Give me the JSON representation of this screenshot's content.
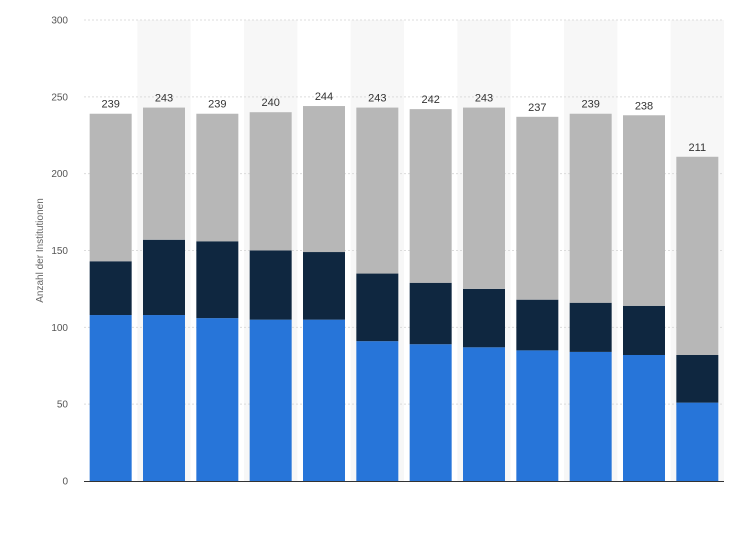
{
  "chart_data": {
    "type": "bar",
    "stacked": true,
    "ylabel": "Anzahl der Institutionen",
    "ylim": [
      0,
      300
    ],
    "yticks": [
      0,
      50,
      100,
      150,
      200,
      250,
      300
    ],
    "grid": true,
    "categories": [
      "",
      "",
      "",
      "",
      "",
      "",
      "",
      "",
      "",
      "",
      "",
      ""
    ],
    "totals": [
      239,
      243,
      239,
      240,
      244,
      243,
      242,
      243,
      237,
      239,
      238,
      211
    ],
    "series": [
      {
        "color": "#2775d9",
        "values": [
          108,
          108,
          106,
          105,
          105,
          91,
          89,
          87,
          85,
          84,
          82,
          51
        ]
      },
      {
        "color": "#0f2740",
        "values": [
          35,
          49,
          50,
          45,
          44,
          44,
          40,
          38,
          33,
          32,
          32,
          31
        ]
      },
      {
        "color": "#b7b7b7",
        "values": [
          96,
          86,
          83,
          90,
          95,
          108,
          113,
          118,
          119,
          123,
          124,
          129
        ]
      }
    ]
  }
}
